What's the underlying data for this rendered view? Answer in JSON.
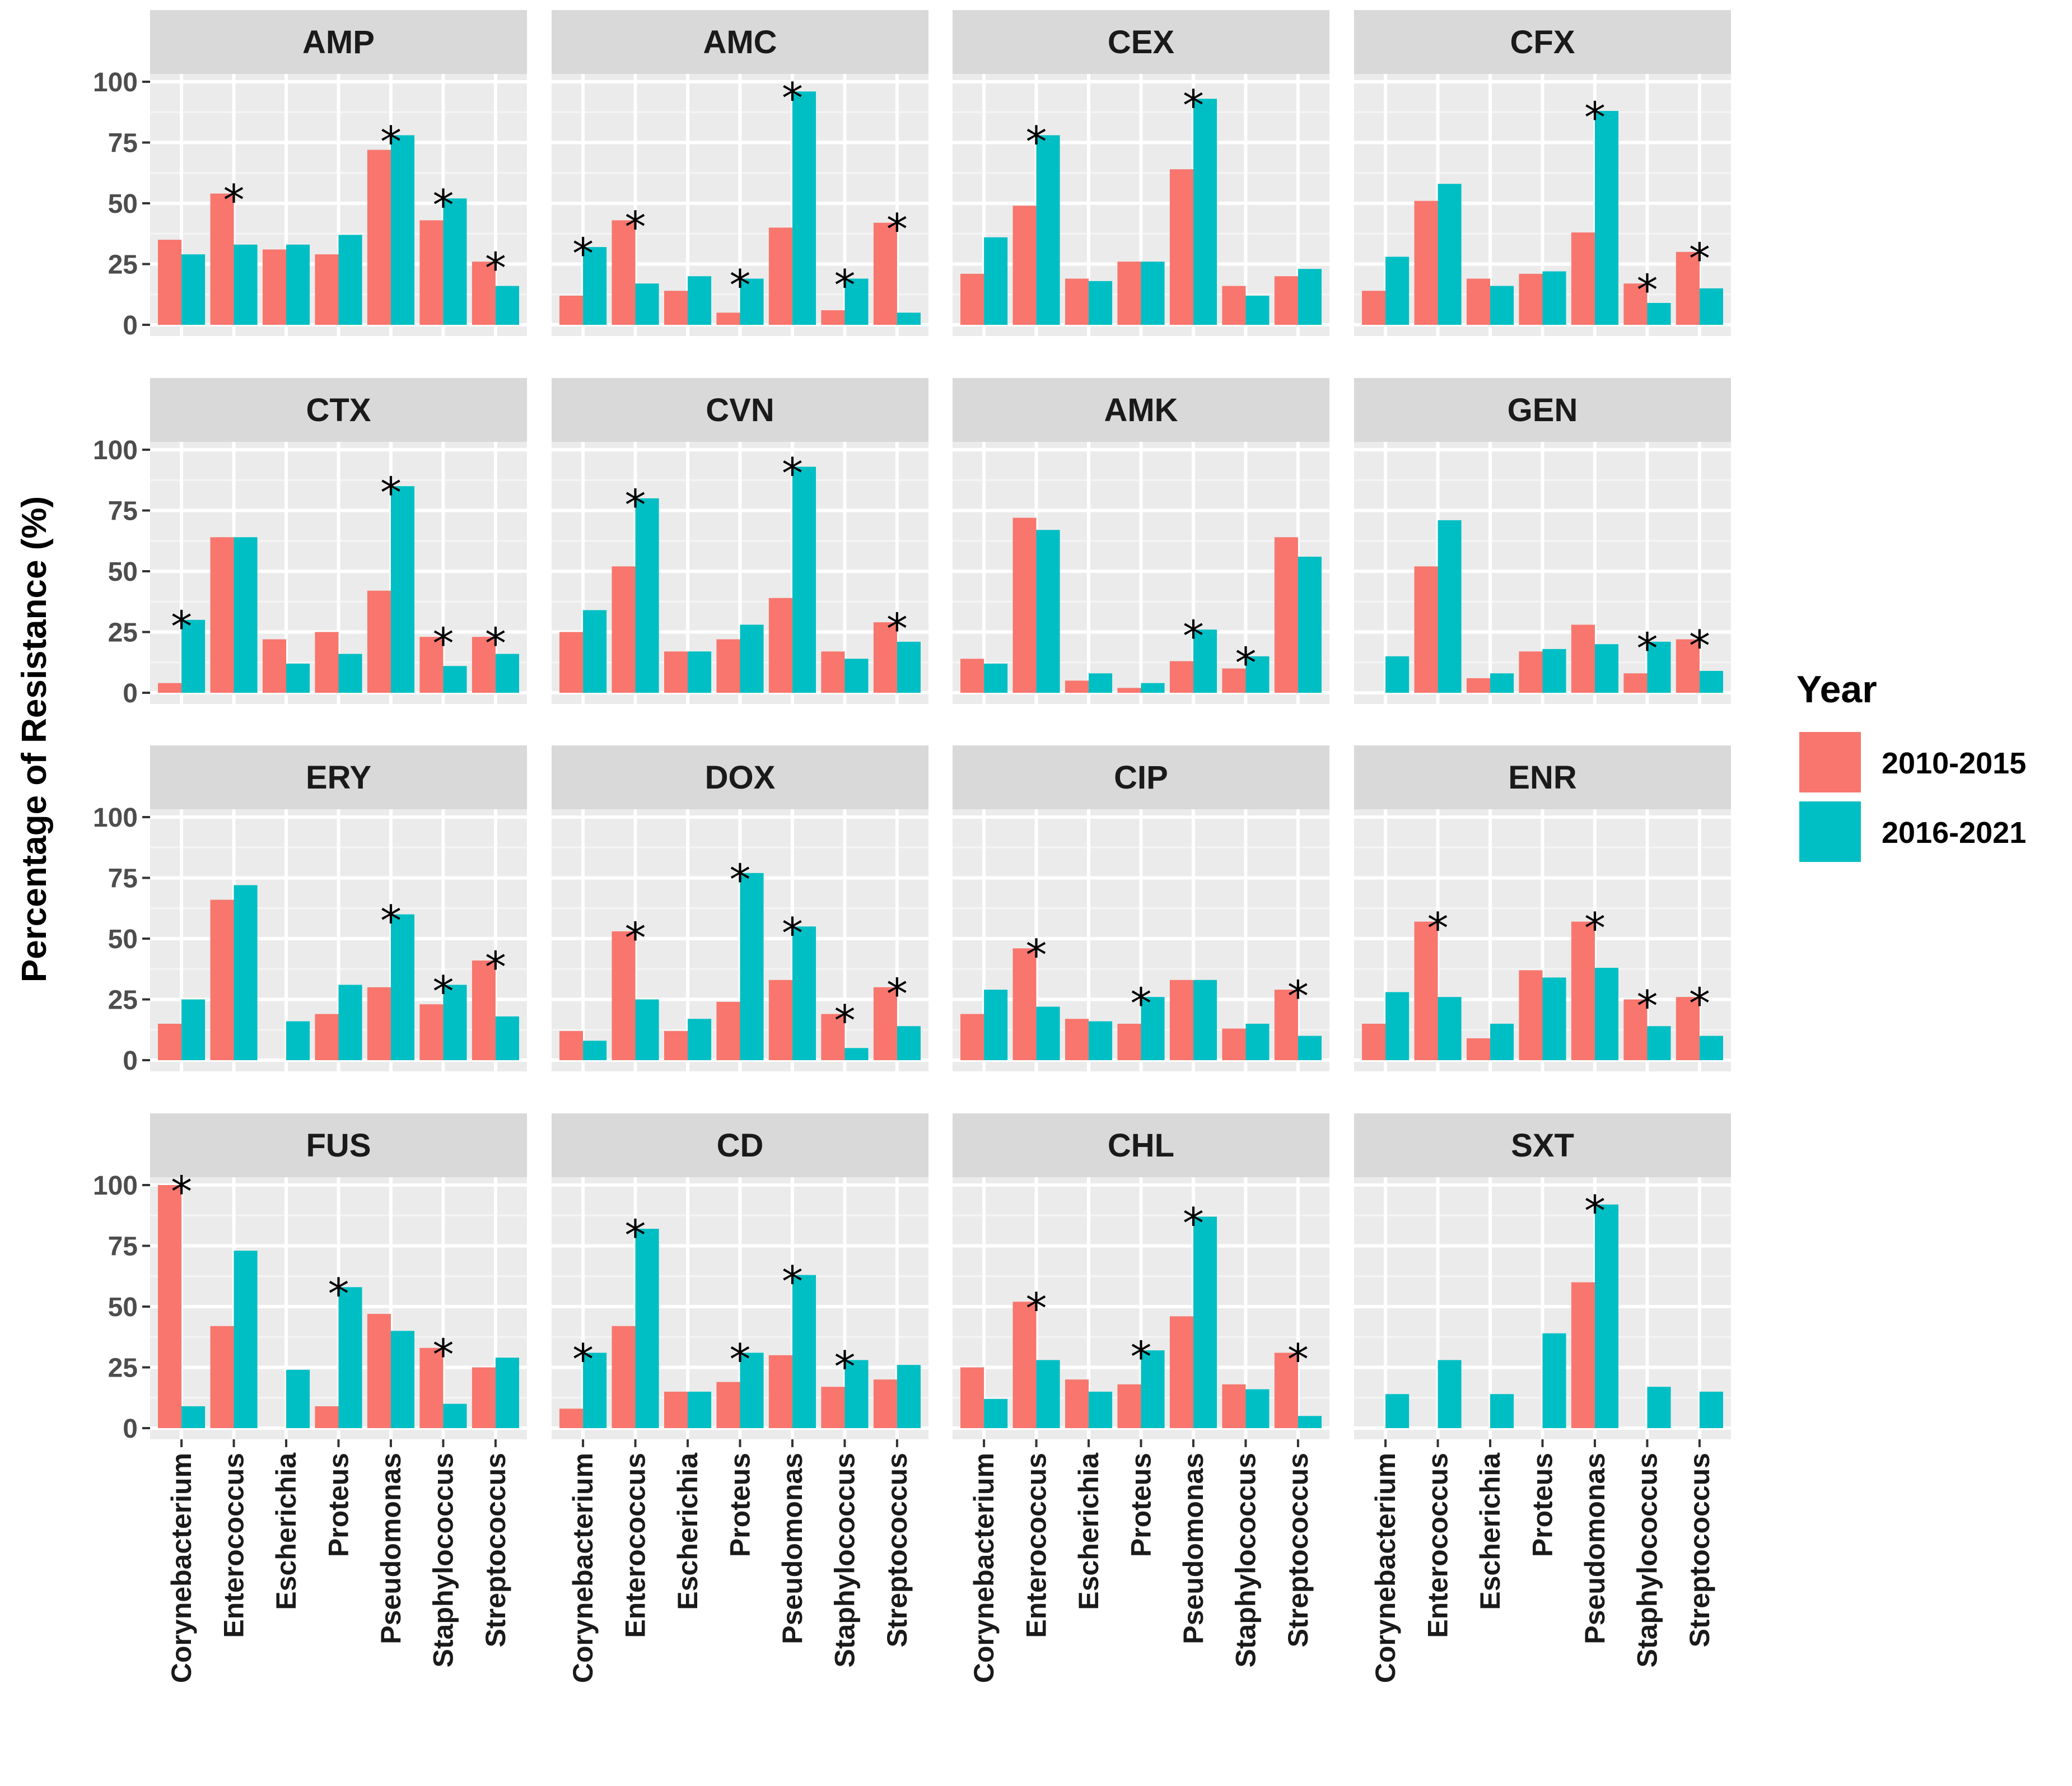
{
  "chart_data": {
    "type": "bar",
    "facets_layout": "4x4",
    "ylabel": "Percentage of Resistance (%)",
    "ylim": [
      0,
      100
    ],
    "yticks": [
      0,
      25,
      50,
      75,
      100
    ],
    "categories": [
      "Corynebacterium",
      "Enterococcus",
      "Escherichia",
      "Proteus",
      "Pseudomonas",
      "Staphylococcus",
      "Streptococcus"
    ],
    "legend": {
      "title": "Year",
      "position": "right",
      "entries": [
        {
          "name": "2010-2015",
          "color": "#F8766D"
        },
        {
          "name": "2016-2021",
          "color": "#00BFC4"
        }
      ]
    },
    "significance_marker": "*",
    "panels": [
      {
        "title": "AMP",
        "s1": [
          35,
          54,
          31,
          29,
          72,
          43,
          26
        ],
        "s2": [
          29,
          33,
          33,
          37,
          78,
          52,
          16
        ],
        "sig": [
          0,
          1,
          0,
          0,
          1,
          1,
          1
        ]
      },
      {
        "title": "AMC",
        "s1": [
          12,
          43,
          14,
          5,
          40,
          6,
          42
        ],
        "s2": [
          32,
          17,
          20,
          19,
          96,
          19,
          5
        ],
        "sig": [
          1,
          1,
          0,
          1,
          1,
          1,
          1
        ]
      },
      {
        "title": "CEX",
        "s1": [
          21,
          49,
          19,
          26,
          64,
          16,
          20
        ],
        "s2": [
          36,
          78,
          18,
          26,
          93,
          12,
          23
        ],
        "sig": [
          0,
          1,
          0,
          0,
          1,
          0,
          0
        ]
      },
      {
        "title": "CFX",
        "s1": [
          14,
          51,
          19,
          21,
          38,
          17,
          30
        ],
        "s2": [
          28,
          58,
          16,
          22,
          88,
          9,
          15
        ],
        "sig": [
          0,
          0,
          0,
          0,
          1,
          1,
          1
        ]
      },
      {
        "title": "CTX",
        "s1": [
          4,
          64,
          22,
          25,
          42,
          23,
          23
        ],
        "s2": [
          30,
          64,
          12,
          16,
          85,
          11,
          16
        ],
        "sig": [
          1,
          0,
          0,
          0,
          1,
          1,
          1
        ]
      },
      {
        "title": "CVN",
        "s1": [
          25,
          52,
          17,
          22,
          39,
          17,
          29
        ],
        "s2": [
          34,
          80,
          17,
          28,
          93,
          14,
          21
        ],
        "sig": [
          0,
          1,
          0,
          0,
          1,
          0,
          1
        ]
      },
      {
        "title": "AMK",
        "s1": [
          14,
          72,
          5,
          2,
          13,
          10,
          64
        ],
        "s2": [
          12,
          67,
          8,
          4,
          26,
          15,
          56
        ],
        "sig": [
          0,
          0,
          0,
          0,
          1,
          1,
          0
        ]
      },
      {
        "title": "GEN",
        "s1": [
          0,
          52,
          6,
          17,
          28,
          8,
          22
        ],
        "s2": [
          15,
          71,
          8,
          18,
          20,
          21,
          9
        ],
        "sig": [
          0,
          0,
          0,
          0,
          0,
          1,
          1
        ]
      },
      {
        "title": "ERY",
        "s1": [
          15,
          66,
          0,
          19,
          30,
          23,
          41
        ],
        "s2": [
          25,
          72,
          16,
          31,
          60,
          31,
          18
        ],
        "sig": [
          0,
          0,
          0,
          0,
          1,
          1,
          1
        ]
      },
      {
        "title": "DOX",
        "s1": [
          12,
          53,
          12,
          24,
          33,
          19,
          30
        ],
        "s2": [
          8,
          25,
          17,
          77,
          55,
          5,
          14
        ],
        "sig": [
          0,
          1,
          0,
          1,
          1,
          1,
          1
        ]
      },
      {
        "title": "CIP",
        "s1": [
          19,
          46,
          17,
          15,
          33,
          13,
          29
        ],
        "s2": [
          29,
          22,
          16,
          26,
          33,
          15,
          10
        ],
        "sig": [
          0,
          1,
          0,
          1,
          0,
          0,
          1
        ]
      },
      {
        "title": "ENR",
        "s1": [
          15,
          57,
          9,
          37,
          57,
          25,
          26
        ],
        "s2": [
          28,
          26,
          15,
          34,
          38,
          14,
          10
        ],
        "sig": [
          0,
          1,
          0,
          0,
          1,
          1,
          1
        ]
      },
      {
        "title": "FUS",
        "s1": [
          100,
          42,
          0,
          9,
          47,
          33,
          25
        ],
        "s2": [
          9,
          73,
          24,
          58,
          40,
          10,
          29
        ],
        "sig": [
          1,
          0,
          0,
          1,
          0,
          1,
          0
        ]
      },
      {
        "title": "CD",
        "s1": [
          8,
          42,
          15,
          19,
          30,
          17,
          20
        ],
        "s2": [
          31,
          82,
          15,
          31,
          63,
          28,
          26
        ],
        "sig": [
          1,
          1,
          0,
          1,
          1,
          1,
          0
        ]
      },
      {
        "title": "CHL",
        "s1": [
          25,
          52,
          20,
          18,
          46,
          18,
          31
        ],
        "s2": [
          12,
          28,
          15,
          32,
          87,
          16,
          5
        ],
        "sig": [
          0,
          1,
          0,
          1,
          1,
          0,
          1
        ]
      },
      {
        "title": "SXT",
        "s1": [
          0,
          0,
          0,
          0,
          60,
          0,
          0
        ],
        "s2": [
          14,
          28,
          14,
          39,
          92,
          17,
          15
        ],
        "sig": [
          0,
          0,
          0,
          0,
          1,
          0,
          0
        ]
      }
    ]
  }
}
